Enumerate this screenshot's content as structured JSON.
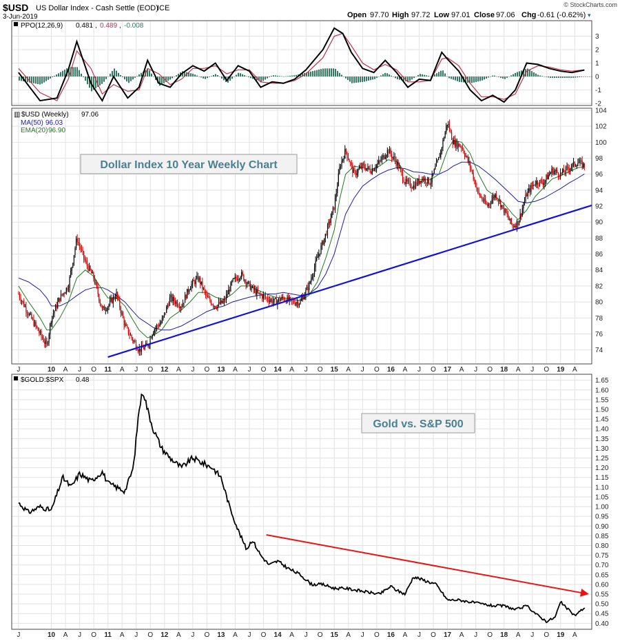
{
  "header": {
    "symbol": "$USD",
    "name": "US Dollar Index - Cash Settle (EOD)",
    "exchange": "ICE",
    "date": "3-Jun-2019",
    "watermark": "© StockCharts.com",
    "open_label": "Open",
    "open": "97.70",
    "high_label": "High",
    "high": "97.72",
    "low_label": "Low",
    "low": "97.01",
    "close_label": "Close",
    "close": "97.06",
    "chg_label": "Chg",
    "chg": "-0.61 (-0.62%)"
  },
  "colors": {
    "candle_up": "#000000",
    "candle_down": "#cc0000",
    "ma50": "#1c1ca8",
    "ema20": "#1e7a1e",
    "ppo_line": "#000000",
    "ppo_signal": "#c0304c",
    "ppo_hist": "#2f7a5e",
    "trendline_up": "#1010dd",
    "trendline_down": "#ee1111",
    "ratio_line": "#000000",
    "annotation_text": "#4b7f92"
  },
  "chart_data": [
    {
      "type": "line",
      "panel": "ppo",
      "legend": [
        {
          "text": "PPO(12,26,9)",
          "value": "0.481",
          "value_color": "#000000"
        },
        {
          "text": "",
          "value": "0.489",
          "value_color": "#c0304c"
        },
        {
          "text": "",
          "value": "-0.008",
          "value_color": "#2f7a5e"
        }
      ],
      "ylim": [
        -2,
        4
      ],
      "yticks": [
        "3",
        "2",
        "1",
        "0",
        "-1",
        "-2"
      ],
      "x": [
        2009.42,
        2009.8,
        2010.1,
        2010.3,
        2010.45,
        2010.7,
        2010.9,
        2011.1,
        2011.35,
        2011.55,
        2011.7,
        2011.9,
        2012.1,
        2012.3,
        2012.5,
        2012.7,
        2012.9,
        2013.1,
        2013.3,
        2013.5,
        2013.7,
        2013.9,
        2014.1,
        2014.3,
        2014.5,
        2014.8,
        2015.0,
        2015.15,
        2015.3,
        2015.5,
        2015.7,
        2015.9,
        2016.1,
        2016.3,
        2016.5,
        2016.7,
        2016.9,
        2017.0,
        2017.2,
        2017.4,
        2017.6,
        2017.8,
        2018.0,
        2018.2,
        2018.4,
        2018.6,
        2018.8,
        2019.0,
        2019.2,
        2019.42
      ],
      "series": [
        {
          "name": "PPO",
          "values": [
            0.3,
            -1.8,
            -1.6,
            0.5,
            2.6,
            -0.5,
            -1.8,
            0.0,
            -1.6,
            -0.8,
            1.2,
            -0.5,
            -0.8,
            0.2,
            0.8,
            0.4,
            1.0,
            -0.3,
            0.8,
            0.4,
            -0.8,
            -0.4,
            -0.5,
            -0.2,
            0.5,
            2.0,
            3.6,
            3.2,
            1.8,
            0.6,
            0.3,
            1.2,
            0.3,
            -0.8,
            -0.2,
            -0.3,
            1.8,
            1.3,
            0.4,
            -1.0,
            -1.8,
            -1.4,
            -1.9,
            -1.0,
            1.0,
            0.9,
            0.6,
            0.4,
            0.3,
            0.48
          ]
        },
        {
          "name": "Signal",
          "values": [
            0.6,
            -1.2,
            -1.8,
            -0.2,
            1.9,
            0.6,
            -1.3,
            -0.6,
            -1.1,
            -1.0,
            0.6,
            0.2,
            -0.6,
            -0.2,
            0.6,
            0.6,
            0.8,
            0.2,
            0.5,
            0.5,
            -0.4,
            -0.5,
            -0.5,
            -0.3,
            0.2,
            1.4,
            3.0,
            3.2,
            2.3,
            1.0,
            0.5,
            0.9,
            0.5,
            -0.4,
            -0.4,
            -0.3,
            1.3,
            1.4,
            0.8,
            -0.5,
            -1.5,
            -1.5,
            -1.7,
            -1.3,
            0.4,
            0.8,
            0.7,
            0.5,
            0.4,
            0.49
          ]
        }
      ]
    },
    {
      "type": "candlestick",
      "panel": "usd",
      "legend": [
        {
          "text": "$USD (Weekly)",
          "value": "97.06"
        },
        {
          "text": "MA(50)",
          "value": "96.03"
        },
        {
          "text": "EMA(20)",
          "value": "96.90"
        }
      ],
      "annotation": "Dollar Index 10 Year Weekly Chart",
      "ylim": [
        72.5,
        104
      ],
      "yticks": [
        "104",
        "102",
        "100",
        "98",
        "96",
        "94",
        "92",
        "90",
        "88",
        "86",
        "84",
        "82",
        "80",
        "78",
        "76",
        "74"
      ],
      "price_x": [
        2009.42,
        2009.6,
        2009.8,
        2009.92,
        2010.0,
        2010.15,
        2010.3,
        2010.45,
        2010.6,
        2010.75,
        2010.9,
        2011.0,
        2011.15,
        2011.3,
        2011.42,
        2011.55,
        2011.7,
        2011.8,
        2011.95,
        2012.1,
        2012.3,
        2012.45,
        2012.6,
        2012.75,
        2012.9,
        2013.05,
        2013.2,
        2013.35,
        2013.5,
        2013.65,
        2013.8,
        2013.95,
        2014.1,
        2014.25,
        2014.4,
        2014.55,
        2014.7,
        2014.85,
        2015.0,
        2015.1,
        2015.2,
        2015.35,
        2015.5,
        2015.65,
        2015.8,
        2015.95,
        2016.1,
        2016.25,
        2016.4,
        2016.55,
        2016.7,
        2016.85,
        2017.0,
        2017.1,
        2017.25,
        2017.4,
        2017.55,
        2017.7,
        2017.85,
        2018.0,
        2018.15,
        2018.25,
        2018.4,
        2018.55,
        2018.7,
        2018.85,
        2019.0,
        2019.15,
        2019.3,
        2019.42
      ],
      "price": [
        81.0,
        78.5,
        76.0,
        74.5,
        78.0,
        80.5,
        82.0,
        88.0,
        85.0,
        83.0,
        79.0,
        79.5,
        81.0,
        77.0,
        75.5,
        74.0,
        74.5,
        76.5,
        77.5,
        80.5,
        79.5,
        82.0,
        83.0,
        80.5,
        79.5,
        80.0,
        82.5,
        83.5,
        82.0,
        81.0,
        80.5,
        80.0,
        80.5,
        80.0,
        80.0,
        82.0,
        85.5,
        88.5,
        92.0,
        97.0,
        99.0,
        96.0,
        97.0,
        96.5,
        97.5,
        99.0,
        97.5,
        95.0,
        94.5,
        95.5,
        95.0,
        98.0,
        102.5,
        100.0,
        99.5,
        97.0,
        93.5,
        92.0,
        93.5,
        91.5,
        89.5,
        90.0,
        93.5,
        95.0,
        95.0,
        96.5,
        96.0,
        96.8,
        97.5,
        97.06
      ],
      "ma50": [
        83.0,
        82.5,
        81.5,
        80.5,
        79.5,
        79.5,
        80.0,
        80.8,
        81.5,
        81.8,
        81.8,
        81.5,
        80.8,
        80.0,
        79.0,
        78.0,
        77.3,
        76.8,
        76.5,
        76.5,
        77.0,
        77.6,
        78.2,
        78.8,
        79.2,
        79.5,
        80.0,
        80.3,
        80.6,
        80.8,
        81.0,
        81.0,
        81.2,
        81.0,
        80.8,
        81.0,
        81.8,
        83.5,
        86.0,
        88.5,
        91.0,
        93.0,
        94.5,
        95.3,
        96.0,
        96.5,
        96.8,
        96.7,
        96.3,
        96.2,
        96.0,
        96.0,
        96.5,
        97.0,
        97.5,
        97.5,
        97.0,
        96.2,
        95.3,
        94.3,
        93.3,
        92.6,
        92.4,
        92.6,
        93.0,
        93.6,
        94.2,
        94.9,
        95.5,
        96.03
      ],
      "ema20": [
        82.0,
        80.0,
        78.0,
        76.5,
        76.5,
        78.0,
        80.0,
        83.0,
        84.0,
        83.2,
        81.5,
        80.5,
        80.5,
        79.5,
        78.0,
        76.5,
        75.5,
        75.8,
        76.5,
        78.0,
        79.0,
        80.0,
        81.2,
        81.2,
        80.6,
        80.3,
        81.0,
        82.0,
        82.0,
        81.5,
        81.0,
        80.6,
        80.5,
        80.3,
        80.2,
        80.8,
        82.5,
        85.5,
        89.0,
        93.0,
        96.0,
        97.0,
        96.8,
        96.6,
        97.0,
        97.8,
        97.6,
        96.3,
        95.5,
        95.3,
        95.3,
        96.0,
        99.0,
        100.2,
        100.0,
        98.6,
        96.0,
        94.0,
        93.2,
        92.3,
        91.0,
        90.3,
        91.5,
        93.2,
        94.3,
        95.4,
        95.8,
        96.3,
        96.8,
        96.9
      ],
      "trendline": {
        "x": [
          2011.0,
          2019.55
        ],
        "y": [
          73.1,
          92.1
        ]
      }
    },
    {
      "type": "line",
      "panel": "gold_spx",
      "legend": [
        {
          "text": "$GOLD:$SPX",
          "value": "0.48"
        }
      ],
      "annotation": "Gold vs. S&P 500",
      "ylim": [
        0.38,
        1.67
      ],
      "yticks": [
        "1.65",
        "1.60",
        "1.55",
        "1.50",
        "1.45",
        "1.40",
        "1.35",
        "1.30",
        "1.25",
        "1.20",
        "1.15",
        "1.10",
        "1.05",
        "1.00",
        "0.95",
        "0.90",
        "0.85",
        "0.80",
        "0.75",
        "0.70",
        "0.65",
        "0.60",
        "0.55",
        "0.50",
        "0.45",
        "0.40"
      ],
      "x": [
        2009.42,
        2009.6,
        2009.8,
        2010.0,
        2010.2,
        2010.35,
        2010.5,
        2010.7,
        2010.9,
        2011.0,
        2011.15,
        2011.3,
        2011.45,
        2011.55,
        2011.62,
        2011.7,
        2011.8,
        2011.95,
        2012.1,
        2012.3,
        2012.5,
        2012.7,
        2012.85,
        2013.0,
        2013.15,
        2013.3,
        2013.45,
        2013.55,
        2013.7,
        2013.85,
        2014.0,
        2014.2,
        2014.4,
        2014.6,
        2014.8,
        2015.0,
        2015.2,
        2015.4,
        2015.6,
        2015.8,
        2016.0,
        2016.1,
        2016.25,
        2016.4,
        2016.6,
        2016.8,
        2017.0,
        2017.2,
        2017.4,
        2017.6,
        2017.8,
        2018.0,
        2018.2,
        2018.4,
        2018.6,
        2018.75,
        2018.9,
        2019.0,
        2019.1,
        2019.25,
        2019.42
      ],
      "values": [
        1.02,
        0.97,
        1.0,
        0.98,
        1.15,
        1.1,
        1.17,
        1.13,
        1.18,
        1.12,
        1.1,
        1.08,
        1.2,
        1.5,
        1.6,
        1.5,
        1.4,
        1.3,
        1.25,
        1.2,
        1.25,
        1.22,
        1.2,
        1.15,
        1.0,
        0.88,
        0.78,
        0.83,
        0.75,
        0.7,
        0.72,
        0.68,
        0.65,
        0.6,
        0.6,
        0.58,
        0.58,
        0.57,
        0.56,
        0.55,
        0.59,
        0.57,
        0.55,
        0.64,
        0.62,
        0.6,
        0.52,
        0.52,
        0.51,
        0.5,
        0.49,
        0.49,
        0.47,
        0.49,
        0.44,
        0.41,
        0.43,
        0.51,
        0.48,
        0.44,
        0.48
      ],
      "trendline": {
        "x": [
          2013.8,
          2019.5
        ],
        "y": [
          0.855,
          0.55
        ]
      }
    }
  ],
  "x_axis_ticks": [
    {
      "label": "J",
      "x": 2009.42
    },
    {
      "label": "10",
      "x": 2010.0
    },
    {
      "label": "A",
      "x": 2010.25
    },
    {
      "label": "J",
      "x": 2010.5
    },
    {
      "label": "O",
      "x": 2010.75
    },
    {
      "label": "11",
      "x": 2011.0
    },
    {
      "label": "A",
      "x": 2011.25
    },
    {
      "label": "J",
      "x": 2011.5
    },
    {
      "label": "O",
      "x": 2011.75
    },
    {
      "label": "12",
      "x": 2012.0
    },
    {
      "label": "A",
      "x": 2012.25
    },
    {
      "label": "J",
      "x": 2012.5
    },
    {
      "label": "O",
      "x": 2012.75
    },
    {
      "label": "13",
      "x": 2013.0
    },
    {
      "label": "A",
      "x": 2013.25
    },
    {
      "label": "J",
      "x": 2013.5
    },
    {
      "label": "O",
      "x": 2013.75
    },
    {
      "label": "14",
      "x": 2014.0
    },
    {
      "label": "A",
      "x": 2014.25
    },
    {
      "label": "J",
      "x": 2014.5
    },
    {
      "label": "O",
      "x": 2014.75
    },
    {
      "label": "15",
      "x": 2015.0
    },
    {
      "label": "A",
      "x": 2015.25
    },
    {
      "label": "J",
      "x": 2015.5
    },
    {
      "label": "O",
      "x": 2015.75
    },
    {
      "label": "16",
      "x": 2016.0
    },
    {
      "label": "A",
      "x": 2016.25
    },
    {
      "label": "J",
      "x": 2016.5
    },
    {
      "label": "O",
      "x": 2016.75
    },
    {
      "label": "17",
      "x": 2017.0
    },
    {
      "label": "A",
      "x": 2017.25
    },
    {
      "label": "J",
      "x": 2017.5
    },
    {
      "label": "O",
      "x": 2017.75
    },
    {
      "label": "18",
      "x": 2018.0
    },
    {
      "label": "A",
      "x": 2018.25
    },
    {
      "label": "J",
      "x": 2018.5
    },
    {
      "label": "O",
      "x": 2018.75
    },
    {
      "label": "19",
      "x": 2019.0
    },
    {
      "label": "A",
      "x": 2019.25
    }
  ]
}
